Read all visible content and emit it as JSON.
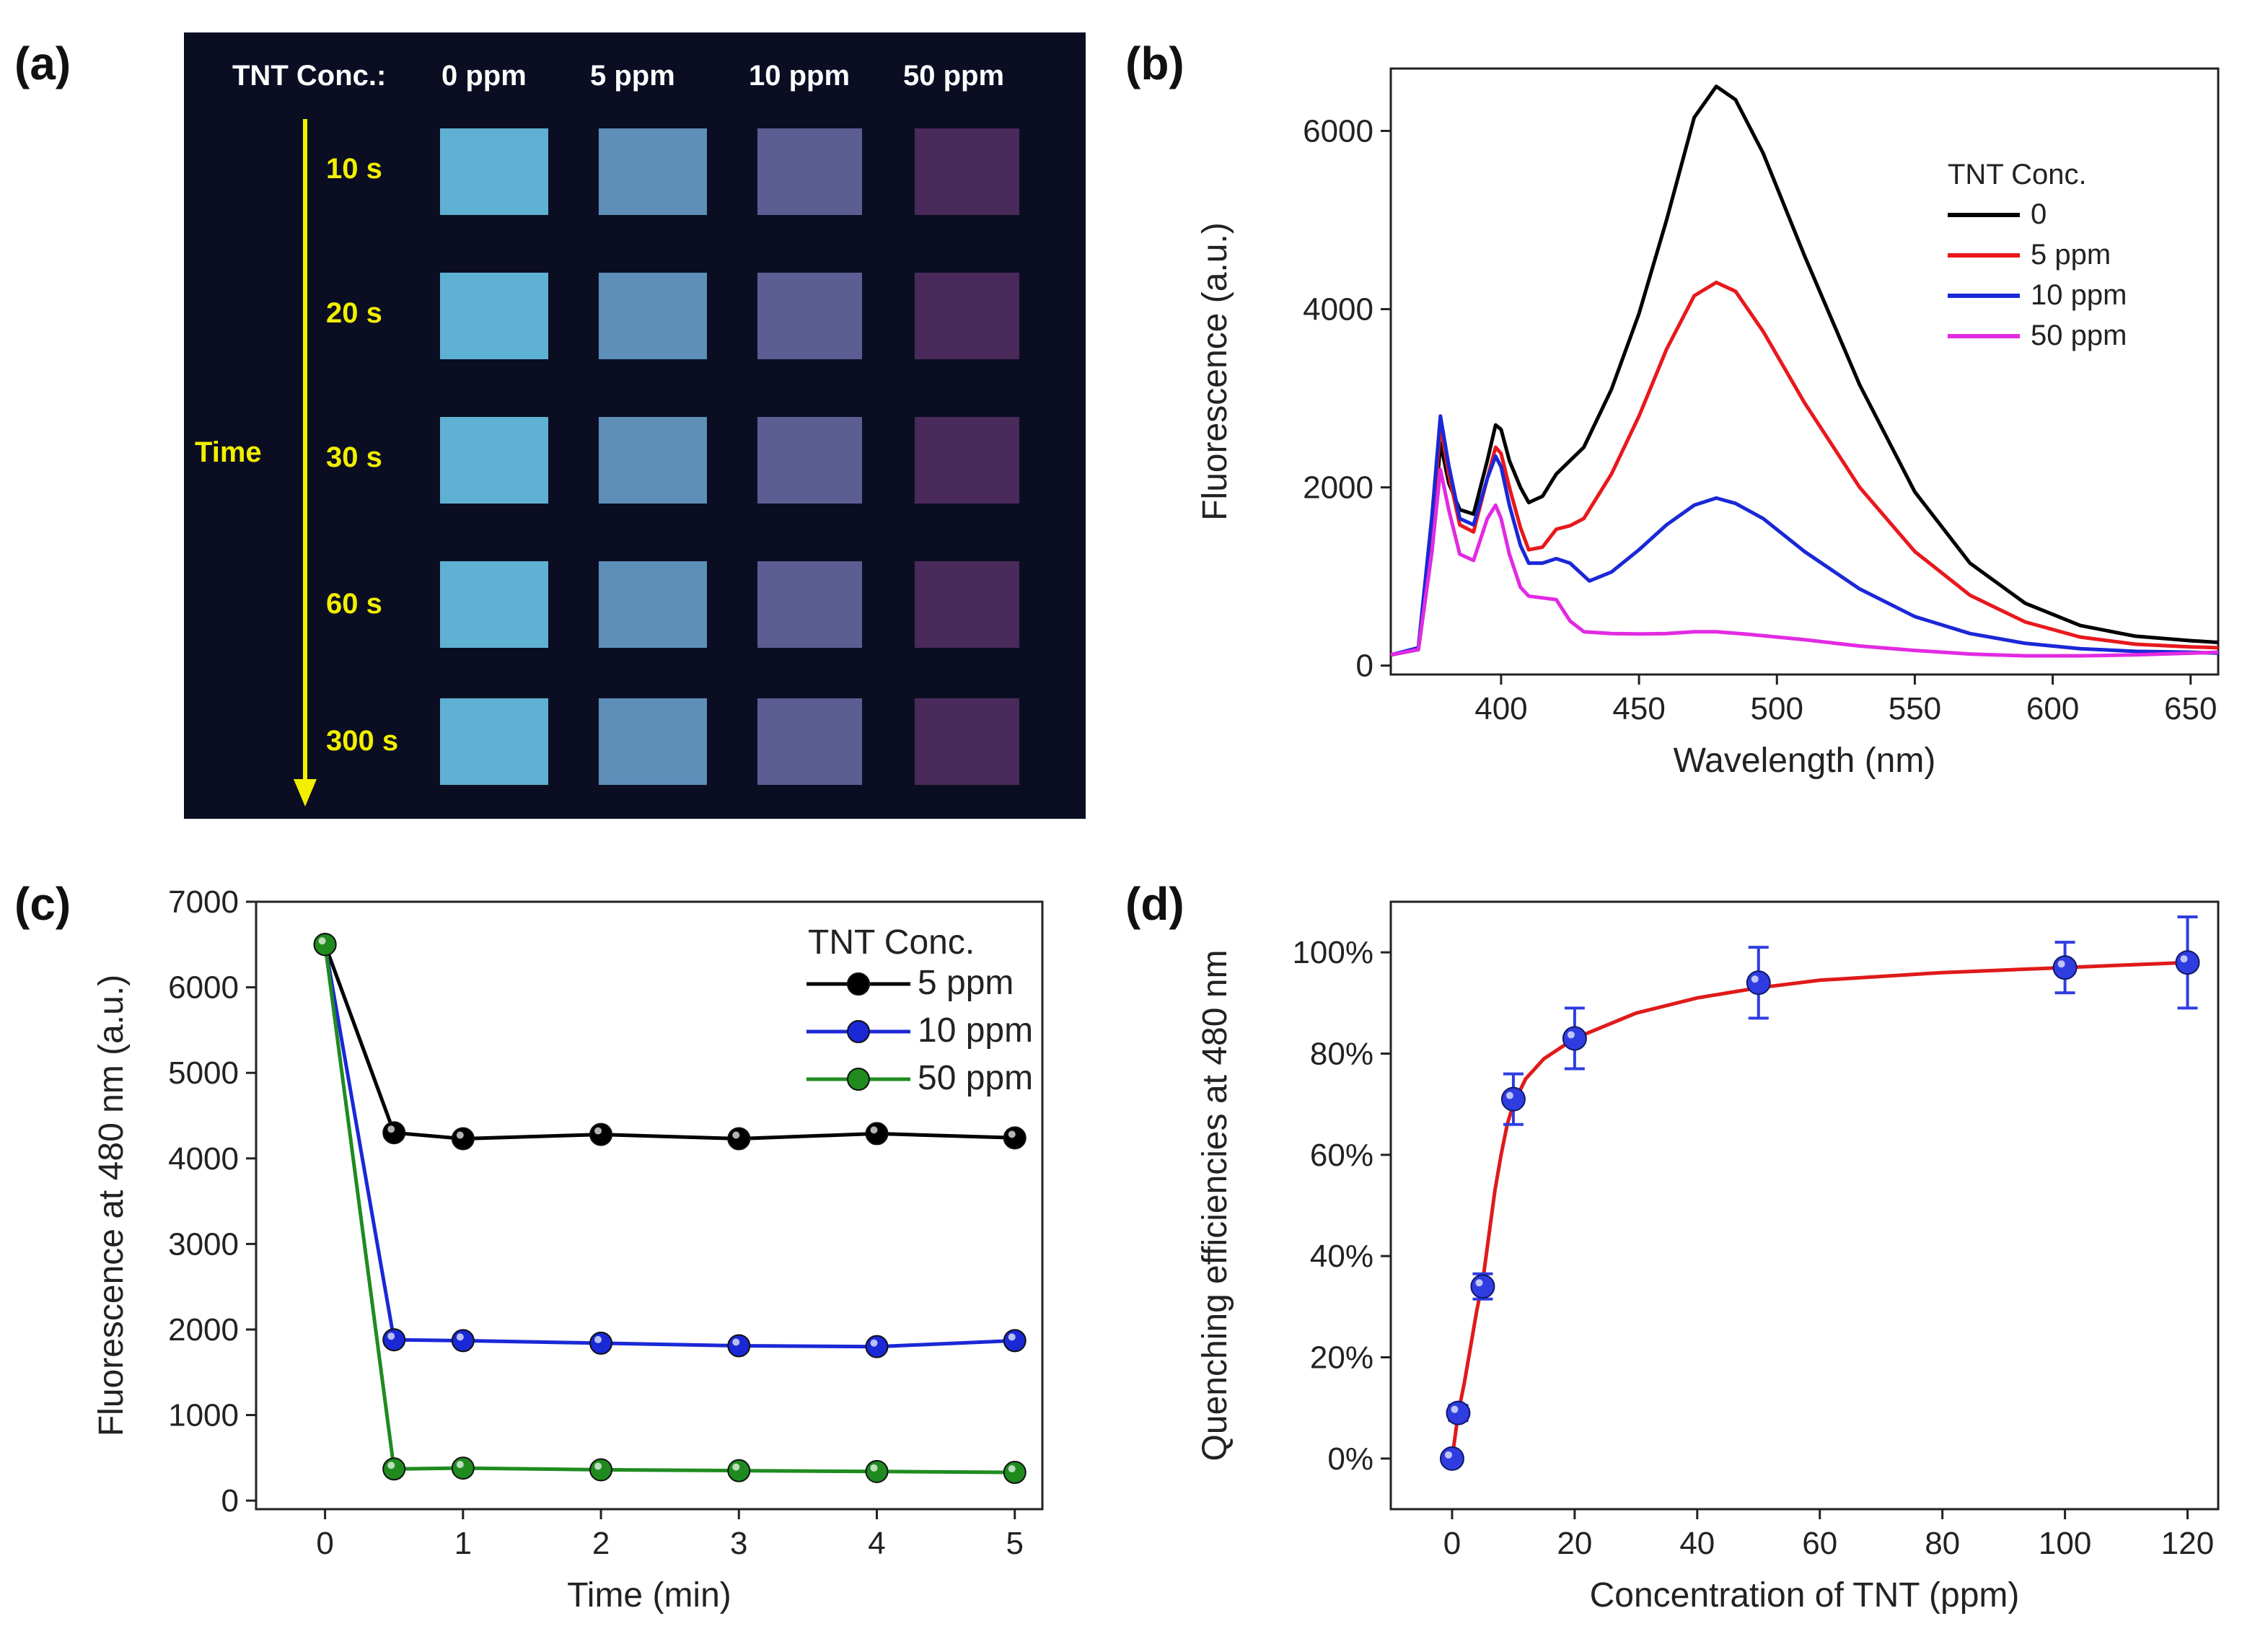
{
  "panel_labels": {
    "a": "(a)",
    "b": "(b)",
    "c": "(c)",
    "d": "(d)"
  },
  "photo": {
    "header_label": "TNT Conc.:",
    "conc_labels": [
      "0 ppm",
      "5 ppm",
      "10 ppm",
      "50 ppm"
    ],
    "axis_label": "Time",
    "time_labels": [
      "10 s",
      "20 s",
      "30 s",
      "60 s",
      "300 s"
    ],
    "swatch_colors": [
      [
        "#5fb1d3",
        "#5d8fb8",
        "#5c5d93",
        "#4a2a5a"
      ],
      [
        "#5fb1d3",
        "#5d8fb8",
        "#5c5d93",
        "#4a2a5a"
      ],
      [
        "#5fb1d3",
        "#5d8fb8",
        "#5c5d93",
        "#4a2a5a"
      ],
      [
        "#5fb1d3",
        "#5d8fb8",
        "#5c5d93",
        "#4a2a5a"
      ],
      [
        "#5fb1d3",
        "#5d8fb8",
        "#5c5d93",
        "#4a2a5a"
      ]
    ]
  },
  "chart_data": [
    {
      "id": "b",
      "type": "line",
      "title": "",
      "xlabel": "Wavelength (nm)",
      "ylabel": "Fluorescence (a.u.)",
      "xlim": [
        360,
        660
      ],
      "ylim": [
        -100,
        6700
      ],
      "xticks": [
        400,
        450,
        500,
        550,
        600,
        650
      ],
      "yticks": [
        0,
        2000,
        4000,
        6000
      ],
      "legend_title": "TNT Conc.",
      "series": [
        {
          "name": "0",
          "color": "#000000",
          "points": [
            [
              360,
              120
            ],
            [
              370,
              180
            ],
            [
              375,
              1300
            ],
            [
              378,
              2500
            ],
            [
              381,
              2050
            ],
            [
              385,
              1750
            ],
            [
              390,
              1700
            ],
            [
              395,
              2300
            ],
            [
              398,
              2700
            ],
            [
              400,
              2650
            ],
            [
              403,
              2300
            ],
            [
              407,
              2000
            ],
            [
              410,
              1830
            ],
            [
              415,
              1900
            ],
            [
              420,
              2150
            ],
            [
              425,
              2300
            ],
            [
              430,
              2450
            ],
            [
              440,
              3100
            ],
            [
              450,
              3950
            ],
            [
              460,
              5000
            ],
            [
              470,
              6150
            ],
            [
              478,
              6500
            ],
            [
              485,
              6350
            ],
            [
              495,
              5750
            ],
            [
              510,
              4600
            ],
            [
              530,
              3150
            ],
            [
              550,
              1950
            ],
            [
              570,
              1150
            ],
            [
              590,
              700
            ],
            [
              610,
              450
            ],
            [
              630,
              330
            ],
            [
              650,
              280
            ],
            [
              660,
              260
            ]
          ]
        },
        {
          "name": "5 ppm",
          "color": "#e8181c",
          "points": [
            [
              360,
              120
            ],
            [
              370,
              190
            ],
            [
              375,
              1500
            ],
            [
              378,
              2700
            ],
            [
              381,
              2150
            ],
            [
              385,
              1580
            ],
            [
              390,
              1500
            ],
            [
              395,
              2100
            ],
            [
              398,
              2450
            ],
            [
              400,
              2380
            ],
            [
              403,
              2000
            ],
            [
              407,
              1550
            ],
            [
              410,
              1300
            ],
            [
              415,
              1330
            ],
            [
              420,
              1530
            ],
            [
              425,
              1570
            ],
            [
              430,
              1650
            ],
            [
              440,
              2150
            ],
            [
              450,
              2800
            ],
            [
              460,
              3550
            ],
            [
              470,
              4150
            ],
            [
              478,
              4300
            ],
            [
              485,
              4200
            ],
            [
              495,
              3750
            ],
            [
              510,
              2950
            ],
            [
              530,
              2000
            ],
            [
              550,
              1280
            ],
            [
              570,
              790
            ],
            [
              590,
              490
            ],
            [
              610,
              320
            ],
            [
              630,
              240
            ],
            [
              650,
              210
            ],
            [
              660,
              200
            ]
          ]
        },
        {
          "name": "10 ppm",
          "color": "#1a28d6",
          "points": [
            [
              360,
              120
            ],
            [
              370,
              200
            ],
            [
              375,
              1700
            ],
            [
              378,
              2800
            ],
            [
              381,
              2250
            ],
            [
              385,
              1650
            ],
            [
              390,
              1580
            ],
            [
              395,
              2100
            ],
            [
              398,
              2350
            ],
            [
              400,
              2230
            ],
            [
              403,
              1800
            ],
            [
              407,
              1350
            ],
            [
              410,
              1150
            ],
            [
              415,
              1150
            ],
            [
              420,
              1200
            ],
            [
              425,
              1150
            ],
            [
              432,
              950
            ],
            [
              440,
              1050
            ],
            [
              450,
              1300
            ],
            [
              460,
              1580
            ],
            [
              470,
              1800
            ],
            [
              478,
              1880
            ],
            [
              485,
              1820
            ],
            [
              495,
              1650
            ],
            [
              510,
              1280
            ],
            [
              530,
              860
            ],
            [
              550,
              550
            ],
            [
              570,
              360
            ],
            [
              590,
              250
            ],
            [
              610,
              190
            ],
            [
              630,
              160
            ],
            [
              650,
              150
            ],
            [
              660,
              140
            ]
          ]
        },
        {
          "name": "50 ppm",
          "color": "#e22ae2",
          "points": [
            [
              360,
              120
            ],
            [
              370,
              180
            ],
            [
              375,
              1300
            ],
            [
              378,
              2200
            ],
            [
              381,
              1750
            ],
            [
              385,
              1250
            ],
            [
              390,
              1180
            ],
            [
              395,
              1650
            ],
            [
              398,
              1800
            ],
            [
              400,
              1650
            ],
            [
              403,
              1250
            ],
            [
              407,
              880
            ],
            [
              410,
              780
            ],
            [
              415,
              760
            ],
            [
              420,
              740
            ],
            [
              425,
              500
            ],
            [
              430,
              380
            ],
            [
              440,
              360
            ],
            [
              450,
              355
            ],
            [
              460,
              360
            ],
            [
              470,
              380
            ],
            [
              478,
              380
            ],
            [
              490,
              350
            ],
            [
              510,
              290
            ],
            [
              530,
              220
            ],
            [
              550,
              170
            ],
            [
              570,
              130
            ],
            [
              590,
              110
            ],
            [
              610,
              110
            ],
            [
              630,
              120
            ],
            [
              650,
              140
            ],
            [
              660,
              150
            ]
          ]
        }
      ]
    },
    {
      "id": "c",
      "type": "line",
      "title": "",
      "xlabel": "Time (min)",
      "ylabel": "Fluorescence at 480 nm (a.u.)",
      "xlim": [
        -0.5,
        5.2
      ],
      "ylim": [
        -100,
        7000
      ],
      "xticks": [
        0,
        1,
        2,
        3,
        4,
        5
      ],
      "yticks": [
        0,
        1000,
        2000,
        3000,
        4000,
        5000,
        6000,
        7000
      ],
      "legend_title": "TNT Conc.",
      "x": [
        0,
        0.5,
        1,
        2,
        3,
        4,
        5
      ],
      "series": [
        {
          "name": "5 ppm",
          "color": "#000000",
          "values": [
            6500,
            4300,
            4230,
            4280,
            4230,
            4290,
            4240
          ]
        },
        {
          "name": "10 ppm",
          "color": "#1a28d6",
          "values": [
            6500,
            1880,
            1870,
            1840,
            1810,
            1800,
            1870
          ]
        },
        {
          "name": "50 ppm",
          "color": "#1f8b1f",
          "values": [
            6500,
            370,
            380,
            360,
            350,
            340,
            330
          ]
        }
      ]
    },
    {
      "id": "d",
      "type": "scatter",
      "title": "",
      "xlabel": "Concentration of TNT (ppm)",
      "ylabel": "Quenching efficiencies at 480 nm",
      "xlim": [
        -10,
        125
      ],
      "ylim": [
        -0.1,
        1.1
      ],
      "xticks": [
        0,
        20,
        40,
        60,
        80,
        100,
        120
      ],
      "yticks": [
        0,
        0.2,
        0.4,
        0.6,
        0.8,
        1.0
      ],
      "ytick_labels": [
        "0%",
        "20%",
        "40%",
        "60%",
        "80%",
        "100%"
      ],
      "points": [
        {
          "x": 0,
          "y": 0.0,
          "err": 0
        },
        {
          "x": 1,
          "y": 0.09,
          "err": 0.015
        },
        {
          "x": 5,
          "y": 0.34,
          "err": 0.025
        },
        {
          "x": 10,
          "y": 0.71,
          "err": 0.05
        },
        {
          "x": 20,
          "y": 0.83,
          "err": 0.06
        },
        {
          "x": 50,
          "y": 0.94,
          "err": 0.07
        },
        {
          "x": 100,
          "y": 0.97,
          "err": 0.05
        },
        {
          "x": 120,
          "y": 0.98,
          "err": 0.09
        }
      ],
      "fit_points": [
        [
          0,
          0.0
        ],
        [
          1,
          0.09
        ],
        [
          2,
          0.15
        ],
        [
          3,
          0.22
        ],
        [
          4,
          0.29
        ],
        [
          5,
          0.35
        ],
        [
          6,
          0.44
        ],
        [
          7,
          0.53
        ],
        [
          8,
          0.6
        ],
        [
          9,
          0.66
        ],
        [
          10,
          0.7
        ],
        [
          12,
          0.75
        ],
        [
          15,
          0.79
        ],
        [
          20,
          0.83
        ],
        [
          30,
          0.88
        ],
        [
          40,
          0.91
        ],
        [
          50,
          0.93
        ],
        [
          60,
          0.945
        ],
        [
          80,
          0.96
        ],
        [
          100,
          0.97
        ],
        [
          120,
          0.98
        ]
      ],
      "marker_color": "#2f3de0",
      "fit_color": "#e01a1a"
    }
  ]
}
